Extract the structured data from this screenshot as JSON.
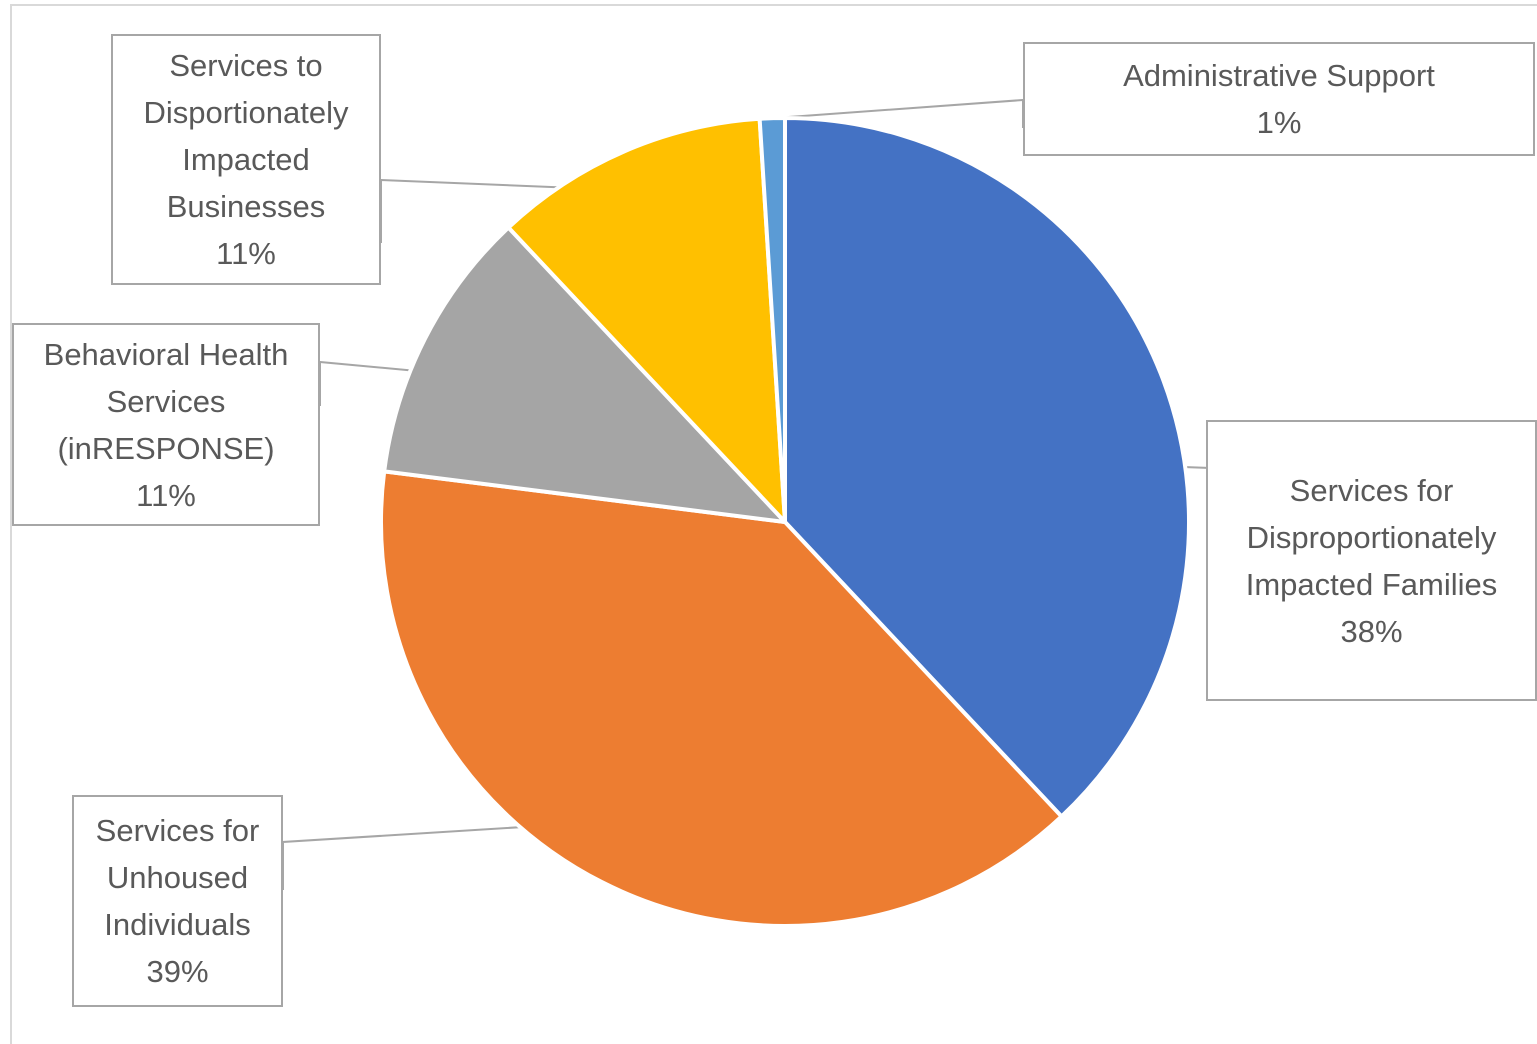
{
  "chart_data": {
    "type": "pie",
    "title": "",
    "start_angle_deg": 0,
    "direction": "clockwise",
    "slices": [
      {
        "label": "Services for Disproportionately Impacted Families",
        "lines": [
          "Services for",
          "Disproportionately",
          "Impacted Families"
        ],
        "value": 38,
        "percent_label": "38%",
        "color": "#4472C4"
      },
      {
        "label": "Services for Unhoused Individuals",
        "lines": [
          "Services for",
          "Unhoused",
          "Individuals"
        ],
        "value": 39,
        "percent_label": "39%",
        "color": "#ED7D31"
      },
      {
        "label": "Behavioral Health Services (inRESPONSE)",
        "lines": [
          "Behavioral Health",
          "Services",
          "(inRESPONSE)"
        ],
        "value": 11,
        "percent_label": "11%",
        "color": "#A5A5A5"
      },
      {
        "label": "Services to Disportionately Impacted Businesses",
        "lines": [
          "Services to",
          "Disportionately",
          "Impacted",
          "Businesses"
        ],
        "value": 11,
        "percent_label": "11%",
        "color": "#FFC000"
      },
      {
        "label": "Administrative Support",
        "lines": [
          "Administrative Support"
        ],
        "value": 1,
        "percent_label": "1%",
        "color": "#5B9BD5"
      }
    ],
    "data_labels": "callouts with leader lines",
    "legend": "none"
  }
}
